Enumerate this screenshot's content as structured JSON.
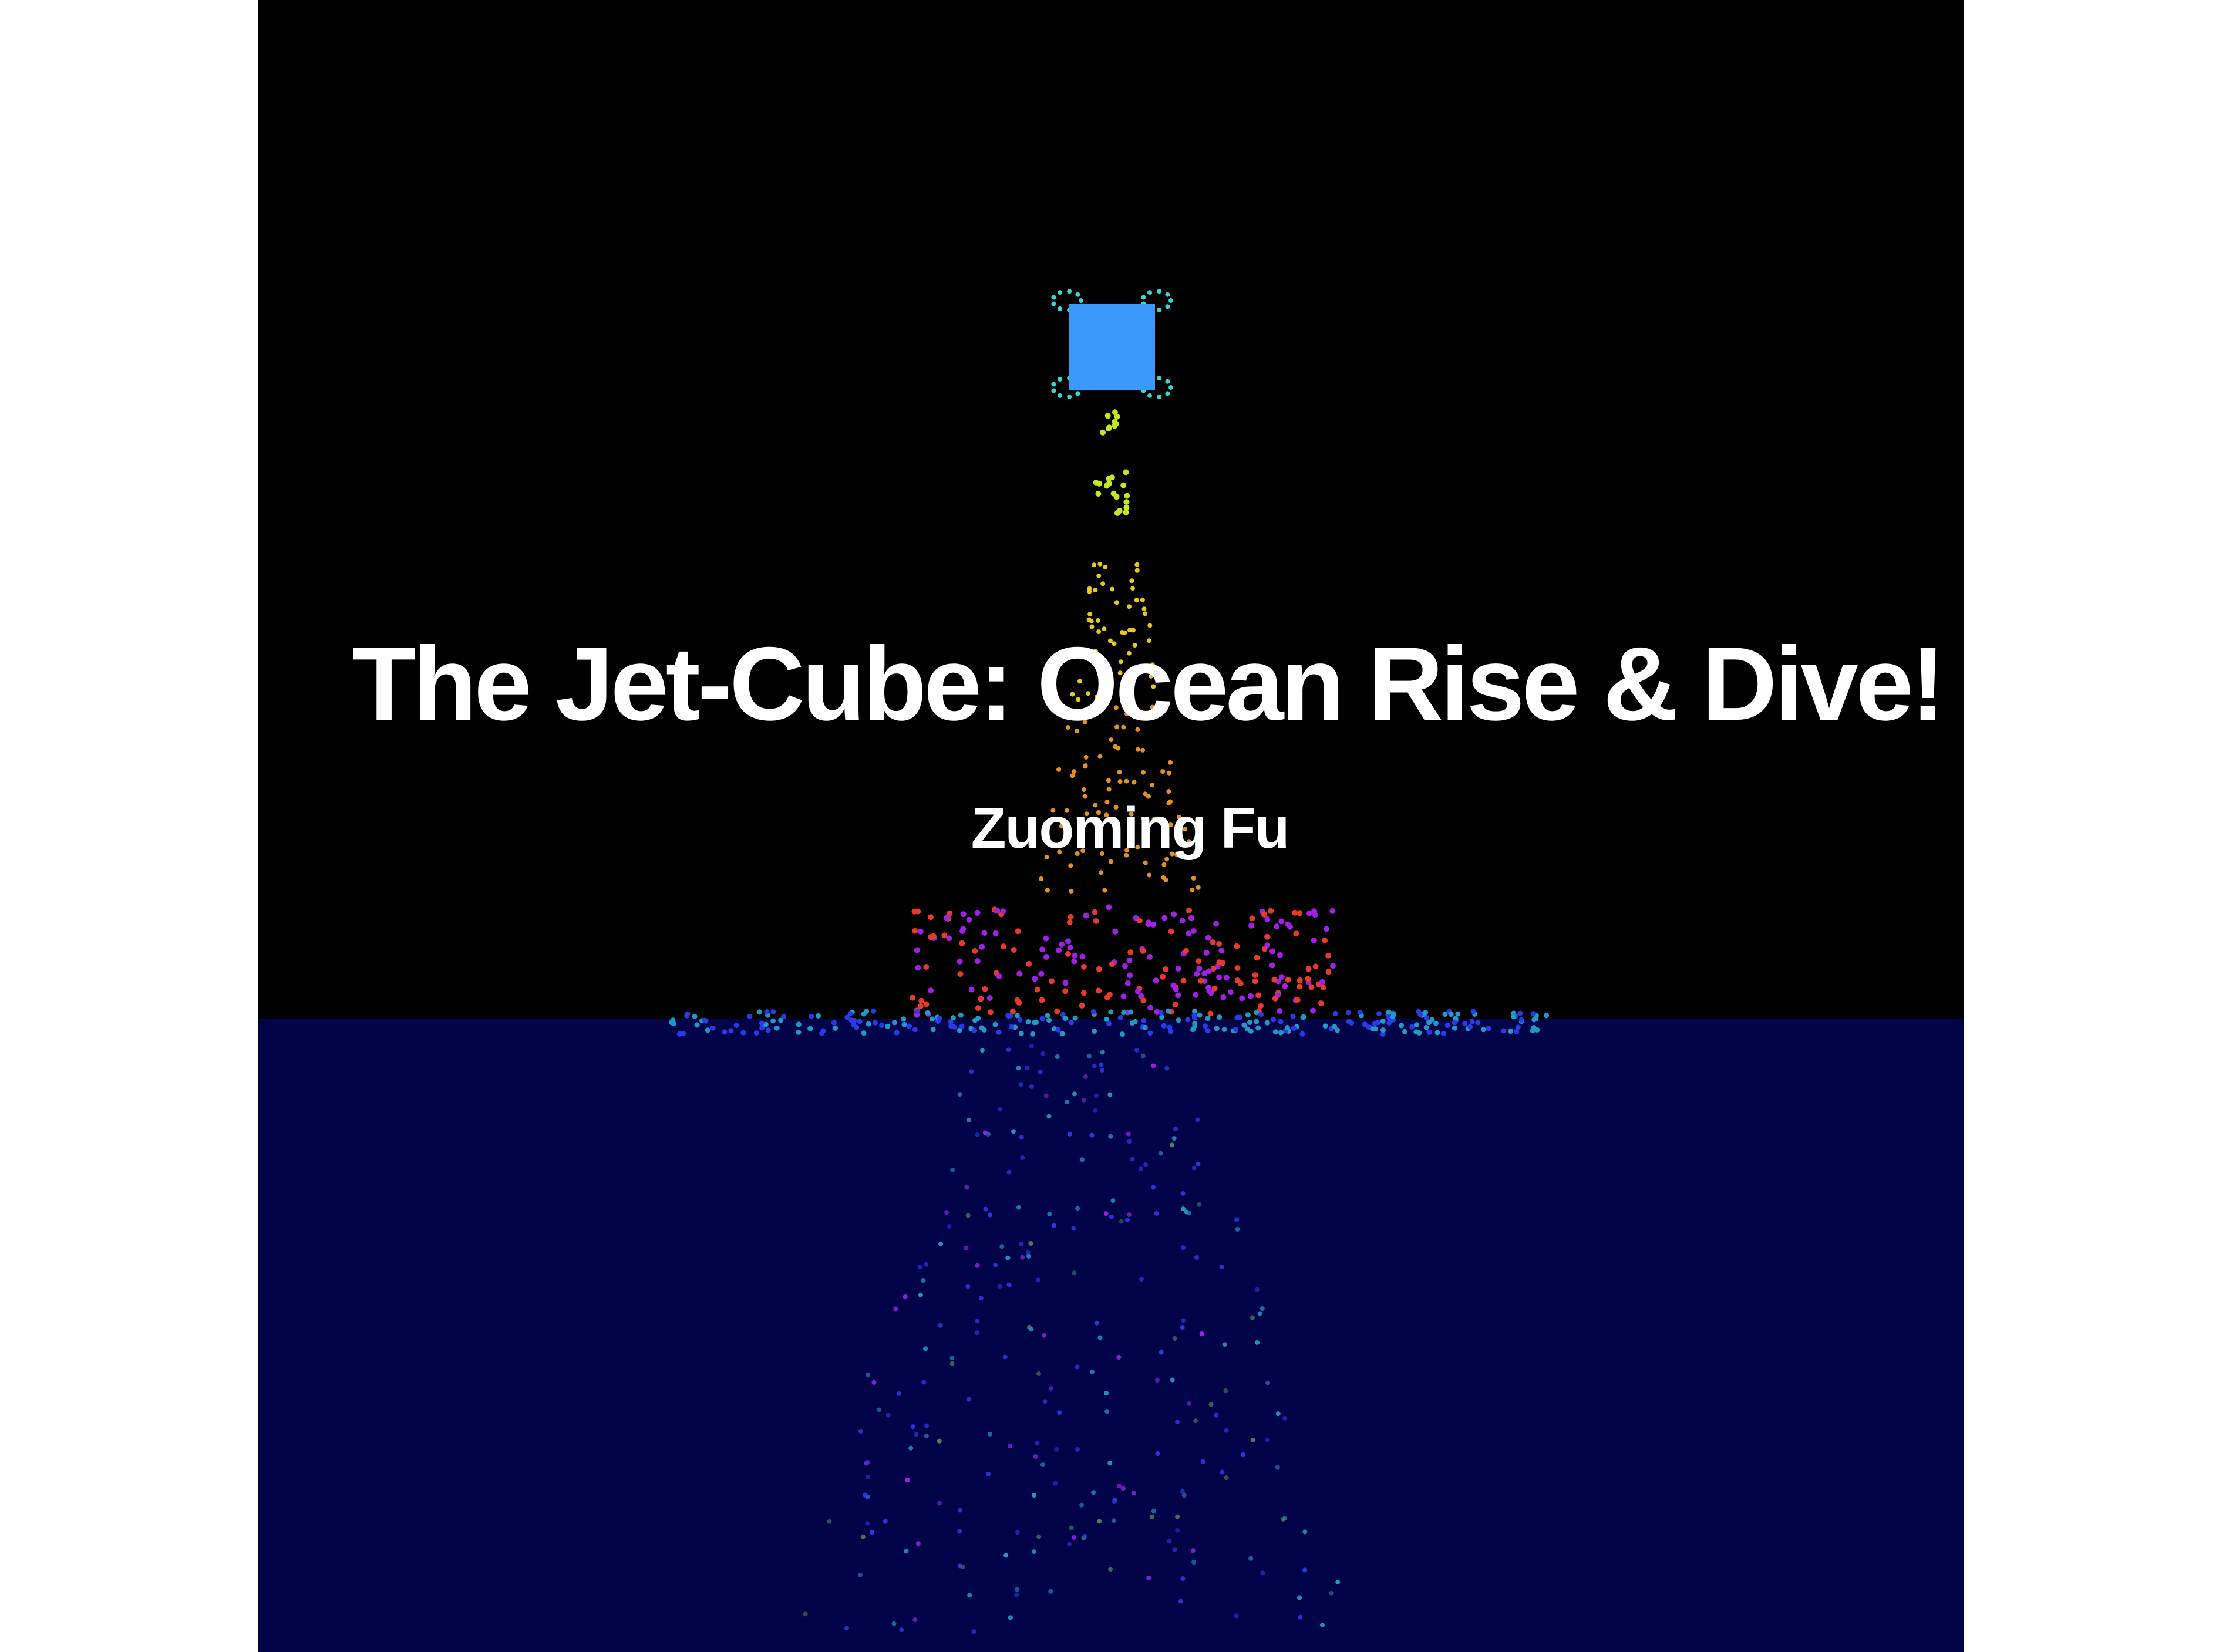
{
  "slide": {
    "title": "The Jet-Cube: Ocean Rise & Dive!",
    "author": "Zuoming Fu"
  },
  "colors": {
    "background": "#ffffff",
    "sky": "#000000",
    "ocean": "#000347",
    "cube": "#3b99fb",
    "thruster_particles": "#35d6d6",
    "exhaust_near": "#c8e61e",
    "exhaust_mid": "#e8c81e",
    "exhaust_far": "#e8901e",
    "splash_hot": "#e83a2a",
    "splash_violet": "#a020e8",
    "surface_spray": "#1e9ac8",
    "underwater": "#2a3ae8"
  },
  "icons": {
    "cube": "jet-cube-shape",
    "particles": "particle-dots"
  }
}
